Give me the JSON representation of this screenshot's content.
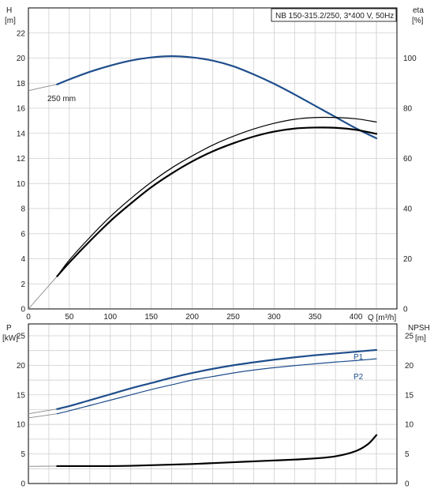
{
  "chart_data": [
    {
      "type": "line",
      "panel": "head-efficiency",
      "title": "NB 150-315.2/250, 3*400 V, 50Hz",
      "xlabel": "Q [m³/h]",
      "x_unit_label": "Q [m³/h]",
      "xlim": [
        0,
        450
      ],
      "x_ticks": [
        0,
        50,
        100,
        150,
        200,
        250,
        300,
        350,
        400
      ],
      "y_left": {
        "label_top": "H",
        "label_unit": "[m]",
        "lim": [
          0,
          24
        ],
        "ticks": [
          0,
          2,
          4,
          6,
          8,
          10,
          12,
          14,
          16,
          18,
          20,
          22
        ]
      },
      "y_right": {
        "label_top": "eta",
        "label_unit": "[%]",
        "lim": [
          0,
          120
        ],
        "ticks": [
          0,
          20,
          40,
          60,
          80,
          100
        ]
      },
      "grid": true,
      "series": [
        {
          "name": "250 mm",
          "axis": "left",
          "color": "#1f4e8c",
          "x_extrapolated": [
            0,
            20,
            35
          ],
          "y_extrapolated": [
            17.4,
            17.7,
            17.9
          ],
          "x": [
            35,
            50,
            75,
            100,
            125,
            150,
            175,
            200,
            225,
            250,
            275,
            300,
            325,
            350,
            375,
            400,
            425
          ],
          "y": [
            17.9,
            18.3,
            18.9,
            19.4,
            19.8,
            20.05,
            20.15,
            20.05,
            19.8,
            19.35,
            18.7,
            17.95,
            17.1,
            16.2,
            15.3,
            14.4,
            13.6
          ]
        },
        {
          "name": "eta",
          "axis": "right",
          "color": "#000000",
          "x": [
            35,
            50,
            75,
            100,
            125,
            150,
            175,
            200,
            225,
            250,
            275,
            300,
            325,
            350,
            375,
            400,
            425
          ],
          "y": [
            13,
            18.5,
            27,
            35,
            42,
            48.5,
            54,
            58.8,
            62.8,
            66,
            68.7,
            70.7,
            71.9,
            72.3,
            72.2,
            71.4,
            69.8
          ]
        },
        {
          "name": "eta-upper",
          "axis": "right",
          "color": "#000000",
          "x_extrapolated": [
            0,
            35
          ],
          "y_extrapolated": [
            0,
            13
          ],
          "x": [
            35,
            50,
            75,
            100,
            125,
            150,
            175,
            200,
            225,
            250,
            275,
            300,
            325,
            350,
            375,
            400,
            425
          ],
          "y": [
            13,
            19.5,
            28.5,
            36.8,
            44,
            50.5,
            56.2,
            61,
            65.3,
            68.8,
            71.7,
            74,
            75.6,
            76.3,
            76.3,
            75.8,
            74.5
          ]
        }
      ]
    },
    {
      "type": "line",
      "panel": "power-npsh",
      "xlim": [
        0,
        450
      ],
      "x_ticks": [
        0,
        50,
        100,
        150,
        200,
        250,
        300,
        350,
        400
      ],
      "y_left": {
        "label_top": "P",
        "label_unit": "[kW]",
        "lim": [
          0,
          27
        ],
        "ticks": [
          0,
          5,
          10,
          15,
          20,
          25
        ]
      },
      "y_right": {
        "label_top": "NPSH",
        "label_unit": "[m]",
        "lim": [
          0,
          27
        ],
        "ticks": [
          0,
          5,
          10,
          15,
          20,
          25
        ]
      },
      "grid": true,
      "series": [
        {
          "name": "P1",
          "axis": "left",
          "color": "#1f4e8c",
          "x_extrapolated": [
            0,
            35
          ],
          "y_extrapolated": [
            11.8,
            12.6
          ],
          "x": [
            35,
            50,
            75,
            100,
            125,
            150,
            175,
            200,
            225,
            250,
            275,
            300,
            325,
            350,
            375,
            400,
            425
          ],
          "y": [
            12.6,
            13.1,
            14.1,
            15.1,
            16.1,
            17.0,
            17.9,
            18.7,
            19.4,
            20.0,
            20.5,
            20.95,
            21.35,
            21.7,
            22.0,
            22.3,
            22.6
          ]
        },
        {
          "name": "P2",
          "axis": "left",
          "color": "#1f4e8c",
          "x_extrapolated": [
            0,
            35
          ],
          "y_extrapolated": [
            11.1,
            11.8
          ],
          "x": [
            35,
            50,
            75,
            100,
            125,
            150,
            175,
            200,
            225,
            250,
            275,
            300,
            325,
            350,
            375,
            400,
            425
          ],
          "y": [
            11.8,
            12.3,
            13.2,
            14.1,
            15.0,
            15.9,
            16.7,
            17.5,
            18.1,
            18.7,
            19.2,
            19.6,
            19.95,
            20.25,
            20.55,
            20.8,
            21.1
          ]
        },
        {
          "name": "NPSH",
          "axis": "right",
          "color": "#000000",
          "x_extrapolated": [
            0,
            35
          ],
          "y_extrapolated": [
            2.9,
            2.95
          ],
          "x": [
            35,
            50,
            75,
            100,
            125,
            150,
            175,
            200,
            225,
            250,
            275,
            300,
            325,
            350,
            375,
            400,
            415,
            425
          ],
          "y": [
            2.95,
            2.95,
            2.95,
            2.95,
            3.0,
            3.1,
            3.2,
            3.3,
            3.45,
            3.6,
            3.75,
            3.9,
            4.05,
            4.25,
            4.6,
            5.5,
            6.7,
            8.2
          ]
        }
      ]
    }
  ],
  "labels": {
    "top_left_letter": "H",
    "top_left_unit": "[m]",
    "top_right_letter": "eta",
    "top_right_unit": "[%]",
    "curve_label": "250 mm",
    "x_label": "Q [m³/h]",
    "bottom_left_letter": "P",
    "bottom_left_unit": "[kW]",
    "bottom_right_letter": "NPSH",
    "bottom_right_unit": "[m]",
    "p1_label": "P1",
    "p2_label": "P2"
  }
}
